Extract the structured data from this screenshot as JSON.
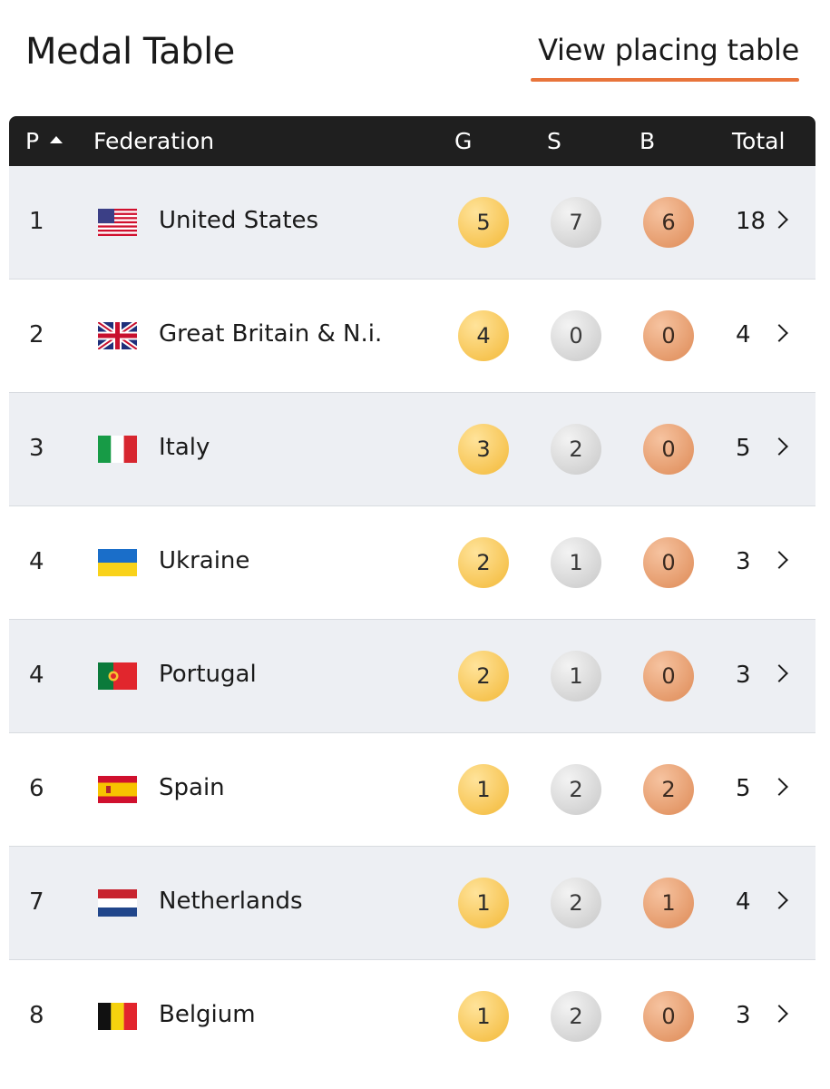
{
  "header": {
    "title": "Medal Table",
    "link_label": "View placing table",
    "accent_color": "#e8743b"
  },
  "table": {
    "columns": {
      "position": "P",
      "federation": "Federation",
      "gold": "G",
      "silver": "S",
      "bronze": "B",
      "total": "Total"
    },
    "sort_indicator": "caret-up-icon",
    "rows": [
      {
        "rank": "1",
        "flag": "us-flag-icon",
        "federation": "United States",
        "gold": "5",
        "silver": "7",
        "bronze": "6",
        "total": "18"
      },
      {
        "rank": "2",
        "flag": "gb-flag-icon",
        "federation": "Great Britain & N.i.",
        "gold": "4",
        "silver": "0",
        "bronze": "0",
        "total": "4"
      },
      {
        "rank": "3",
        "flag": "it-flag-icon",
        "federation": "Italy",
        "gold": "3",
        "silver": "2",
        "bronze": "0",
        "total": "5"
      },
      {
        "rank": "4",
        "flag": "ua-flag-icon",
        "federation": "Ukraine",
        "gold": "2",
        "silver": "1",
        "bronze": "0",
        "total": "3"
      },
      {
        "rank": "4",
        "flag": "pt-flag-icon",
        "federation": "Portugal",
        "gold": "2",
        "silver": "1",
        "bronze": "0",
        "total": "3"
      },
      {
        "rank": "6",
        "flag": "es-flag-icon",
        "federation": "Spain",
        "gold": "1",
        "silver": "2",
        "bronze": "2",
        "total": "5"
      },
      {
        "rank": "7",
        "flag": "nl-flag-icon",
        "federation": "Netherlands",
        "gold": "1",
        "silver": "2",
        "bronze": "1",
        "total": "4"
      },
      {
        "rank": "8",
        "flag": "be-flag-icon",
        "federation": "Belgium",
        "gold": "1",
        "silver": "2",
        "bronze": "0",
        "total": "3"
      }
    ]
  }
}
